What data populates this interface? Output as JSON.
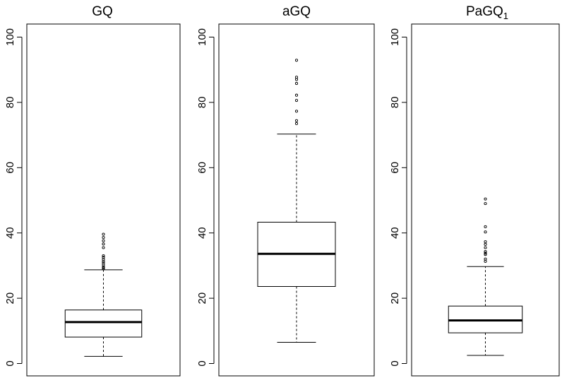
{
  "chart_data": [
    {
      "type": "box",
      "title": "GQ",
      "ylim": [
        0,
        100
      ],
      "yticks": [
        "0",
        "20",
        "40",
        "60",
        "80",
        "100"
      ],
      "box": {
        "lower_whisker": 2.2,
        "q1": 8.1,
        "median": 12.7,
        "q3": 16.4,
        "upper_whisker": 28.7
      },
      "outliers": [
        29.0,
        29.3,
        29.6,
        30.2,
        30.8,
        31.3,
        31.9,
        32.5,
        33.0,
        35.5,
        36.6,
        37.6,
        38.6,
        39.6
      ]
    },
    {
      "type": "box",
      "title": "aGQ",
      "ylim": [
        0,
        100
      ],
      "yticks": [
        "0",
        "20",
        "40",
        "60",
        "80",
        "100"
      ],
      "box": {
        "lower_whisker": 6.5,
        "q1": 23.6,
        "median": 33.6,
        "q3": 43.3,
        "upper_whisker": 70.3
      },
      "outliers": [
        73.5,
        74.4,
        77.3,
        80.6,
        82.2,
        85.8,
        87.0,
        87.7,
        92.9
      ]
    },
    {
      "type": "box",
      "title": "PaGQ",
      "title_subscript": "1",
      "ylim": [
        0,
        100
      ],
      "yticks": [
        "0",
        "20",
        "40",
        "60",
        "80",
        "100"
      ],
      "box": {
        "lower_whisker": 2.5,
        "q1": 9.4,
        "median": 13.2,
        "q3": 17.6,
        "upper_whisker": 29.7
      },
      "outliers": [
        31.3,
        32.0,
        33.4,
        33.8,
        34.3,
        35.5,
        36.5,
        37.3,
        40.3,
        41.9,
        49.0,
        50.4
      ]
    }
  ]
}
